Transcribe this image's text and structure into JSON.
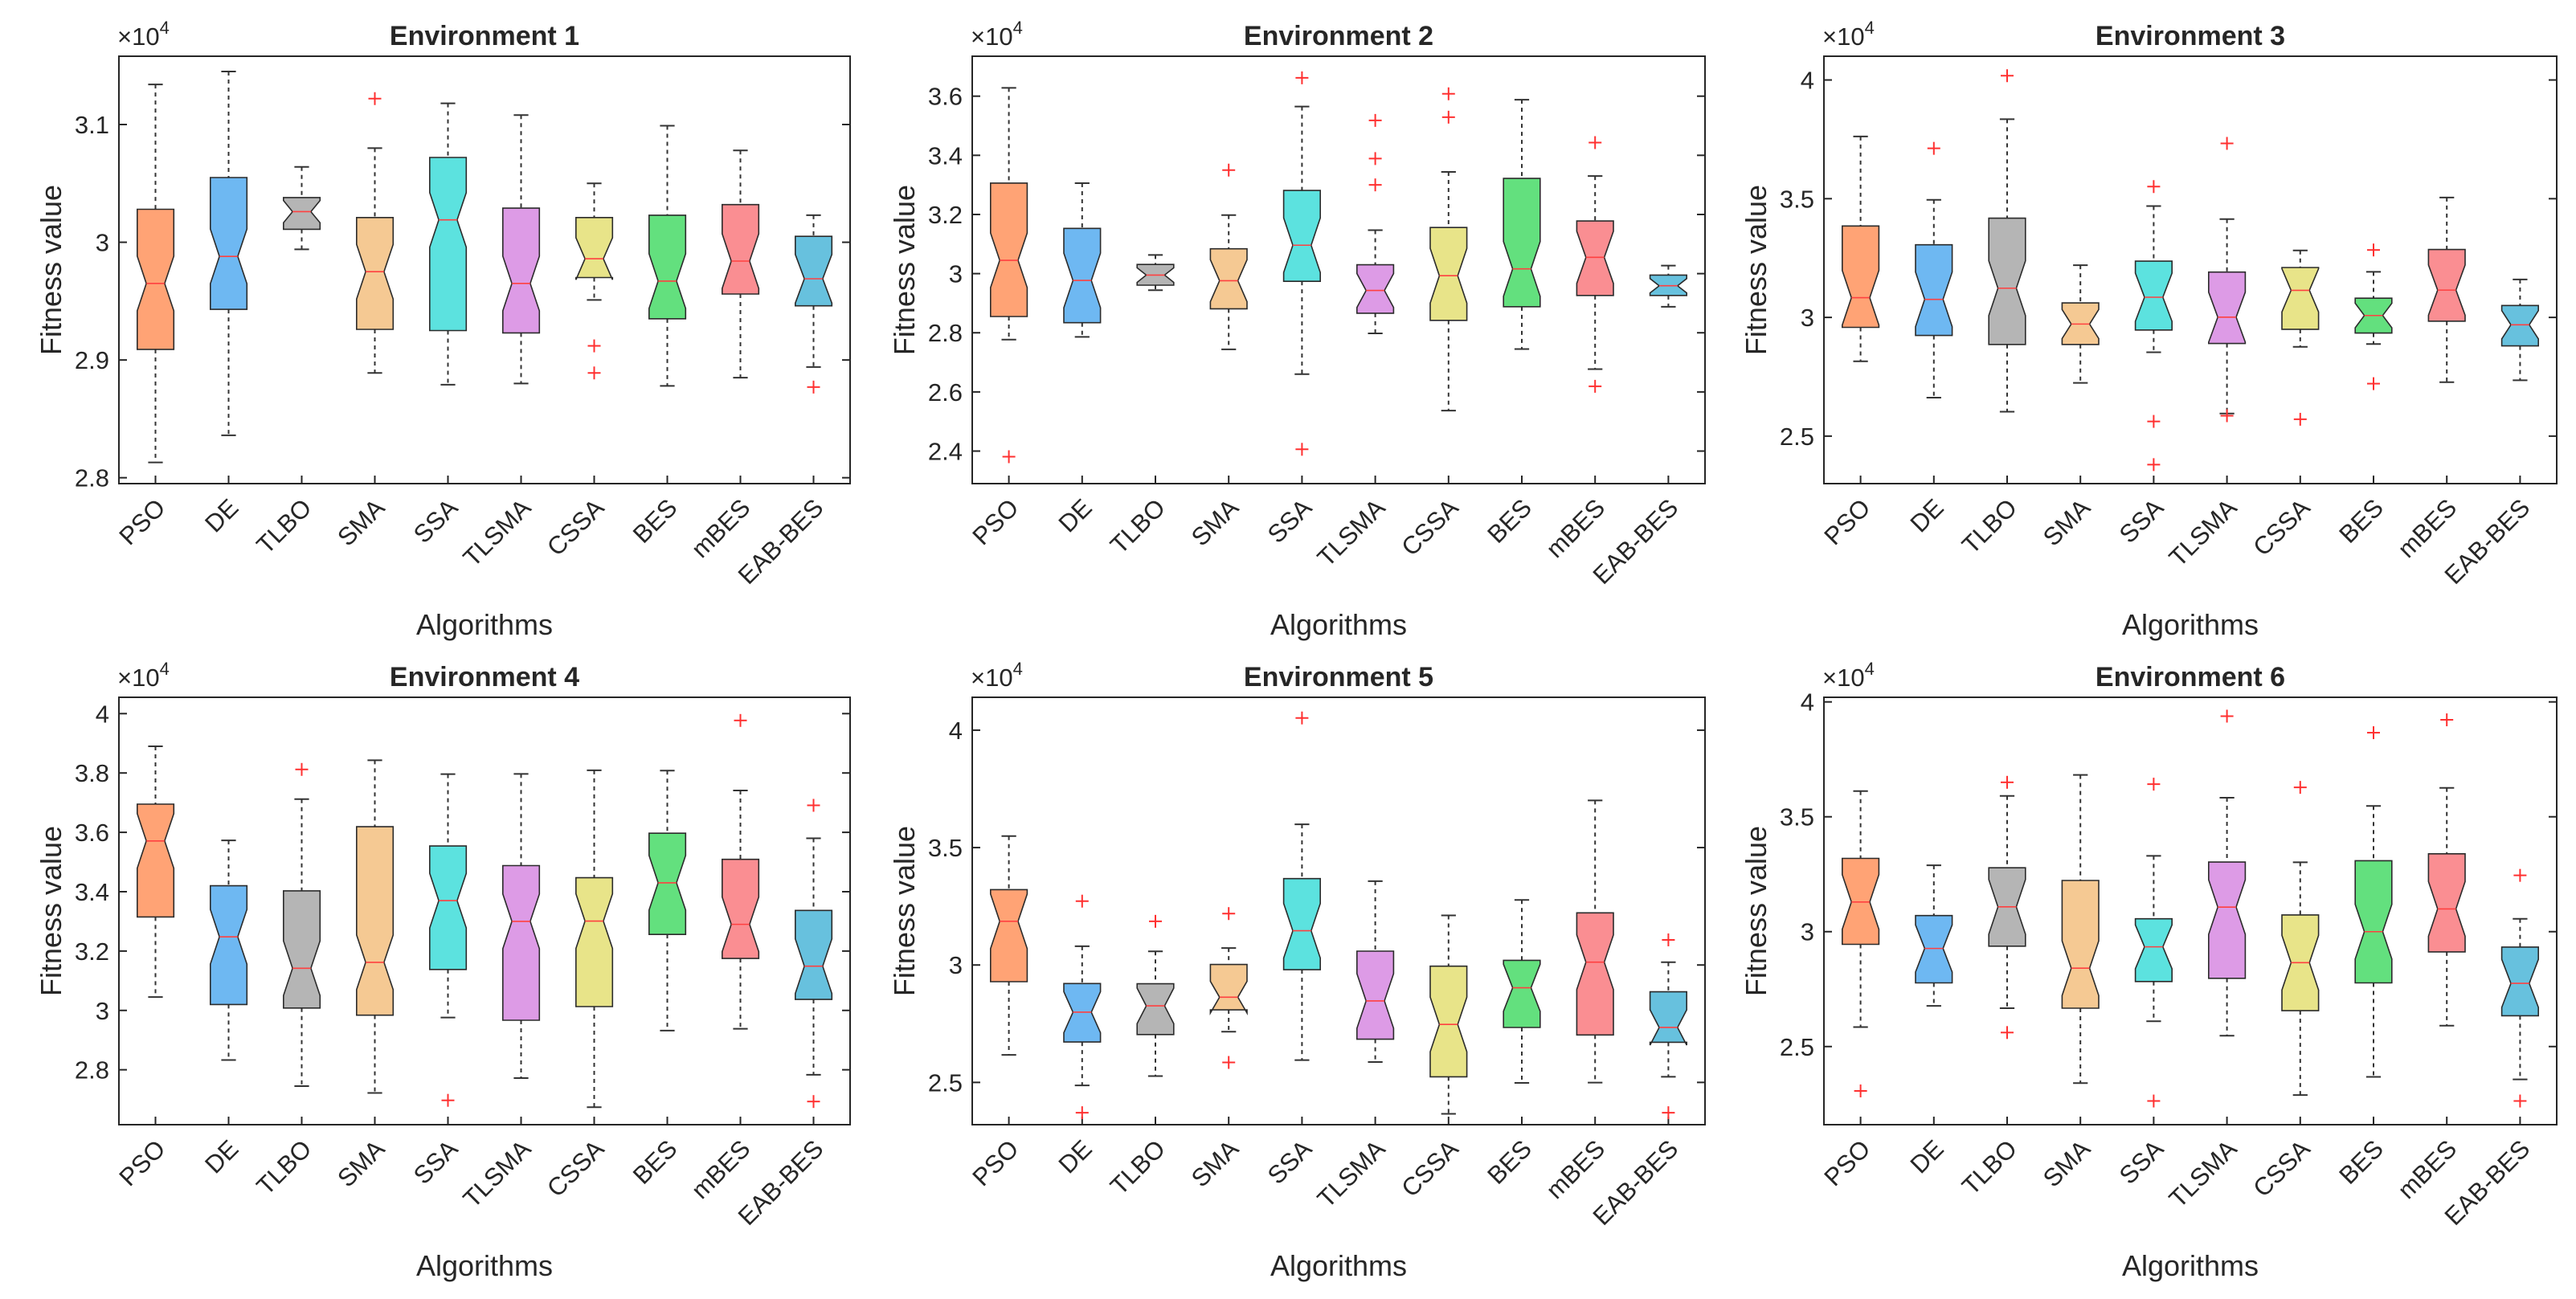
{
  "figure": {
    "algorithms": [
      "PSO",
      "DE",
      "TLBO",
      "SMA",
      "SSA",
      "TLSMA",
      "CSSA",
      "BES",
      "mBES",
      "EAB-BES"
    ],
    "colors": [
      "#FFA375",
      "#6EB8F2",
      "#B5B5B5",
      "#F5C993",
      "#5CE2DF",
      "#DD9BE6",
      "#E8E489",
      "#63E07E",
      "#FA8E92",
      "#67C1DE"
    ],
    "outlier_color": "#FF3030",
    "median_color": "#FF4040",
    "exponent_prefix": "×10",
    "exponent_power": "4"
  },
  "chart_data": [
    {
      "type": "box",
      "title": "Environment 1",
      "xlabel": "Algorithms",
      "ylabel": "Fitness value",
      "ylim": [
        2.795,
        3.158
      ],
      "yticks": [
        2.8,
        2.9,
        3.0,
        3.1
      ],
      "ytick_labels": [
        "2.8",
        "2.9",
        "3",
        "3.1"
      ],
      "scale": "×10^4",
      "boxes": [
        {
          "name": "PSO",
          "whisker_low": 2.813,
          "q1": 2.909,
          "median": 2.965,
          "q3": 3.028,
          "whisker_high": 3.134,
          "outliers": []
        },
        {
          "name": "DE",
          "whisker_low": 2.836,
          "q1": 2.943,
          "median": 2.988,
          "q3": 3.055,
          "whisker_high": 3.145,
          "outliers": []
        },
        {
          "name": "TLBO",
          "whisker_low": 2.994,
          "q1": 3.011,
          "median": 3.026,
          "q3": 3.038,
          "whisker_high": 3.064,
          "outliers": []
        },
        {
          "name": "SMA",
          "whisker_low": 2.889,
          "q1": 2.926,
          "median": 2.975,
          "q3": 3.021,
          "whisker_high": 3.08,
          "outliers": [
            3.122
          ]
        },
        {
          "name": "SSA",
          "whisker_low": 2.879,
          "q1": 2.925,
          "median": 3.019,
          "q3": 3.072,
          "whisker_high": 3.118,
          "outliers": []
        },
        {
          "name": "TLSMA",
          "whisker_low": 2.88,
          "q1": 2.923,
          "median": 2.965,
          "q3": 3.029,
          "whisker_high": 3.108,
          "outliers": []
        },
        {
          "name": "CSSA",
          "whisker_low": 2.951,
          "q1": 2.97,
          "median": 2.986,
          "q3": 3.021,
          "whisker_high": 3.05,
          "outliers": [
            2.912,
            2.889
          ]
        },
        {
          "name": "BES",
          "whisker_low": 2.878,
          "q1": 2.935,
          "median": 2.967,
          "q3": 3.023,
          "whisker_high": 3.099,
          "outliers": []
        },
        {
          "name": "mBES",
          "whisker_low": 2.885,
          "q1": 2.956,
          "median": 2.984,
          "q3": 3.032,
          "whisker_high": 3.078,
          "outliers": []
        },
        {
          "name": "EAB-BES",
          "whisker_low": 2.894,
          "q1": 2.946,
          "median": 2.969,
          "q3": 3.005,
          "whisker_high": 3.023,
          "outliers": [
            2.877
          ]
        }
      ]
    },
    {
      "type": "box",
      "title": "Environment 2",
      "xlabel": "Algorithms",
      "ylabel": "Fitness value",
      "ylim": [
        2.29,
        3.735
      ],
      "yticks": [
        2.4,
        2.6,
        2.8,
        3.0,
        3.2,
        3.4,
        3.6
      ],
      "ytick_labels": [
        "2.4",
        "2.6",
        "2.8",
        "3",
        "3.2",
        "3.4",
        "3.6"
      ],
      "scale": "×10^4",
      "boxes": [
        {
          "name": "PSO",
          "whisker_low": 2.777,
          "q1": 2.855,
          "median": 3.045,
          "q3": 3.306,
          "whisker_high": 3.628,
          "outliers": [
            2.381
          ]
        },
        {
          "name": "DE",
          "whisker_low": 2.786,
          "q1": 2.834,
          "median": 2.977,
          "q3": 3.153,
          "whisker_high": 3.306,
          "outliers": []
        },
        {
          "name": "TLBO",
          "whisker_low": 2.944,
          "q1": 2.961,
          "median": 2.995,
          "q3": 3.031,
          "whisker_high": 3.063,
          "outliers": []
        },
        {
          "name": "SMA",
          "whisker_low": 2.744,
          "q1": 2.881,
          "median": 2.976,
          "q3": 3.084,
          "whisker_high": 3.198,
          "outliers": [
            3.35
          ]
        },
        {
          "name": "SSA",
          "whisker_low": 2.66,
          "q1": 2.974,
          "median": 3.096,
          "q3": 3.281,
          "whisker_high": 3.565,
          "outliers": [
            3.662,
            2.406
          ]
        },
        {
          "name": "TLSMA",
          "whisker_low": 2.798,
          "q1": 2.866,
          "median": 2.943,
          "q3": 3.03,
          "whisker_high": 3.147,
          "outliers": [
            3.518,
            3.389,
            3.3
          ]
        },
        {
          "name": "CSSA",
          "whisker_low": 2.537,
          "q1": 2.842,
          "median": 2.993,
          "q3": 3.156,
          "whisker_high": 3.344,
          "outliers": [
            3.608,
            3.529
          ]
        },
        {
          "name": "BES",
          "whisker_low": 2.745,
          "q1": 2.888,
          "median": 3.016,
          "q3": 3.322,
          "whisker_high": 3.588,
          "outliers": []
        },
        {
          "name": "mBES",
          "whisker_low": 2.677,
          "q1": 2.926,
          "median": 3.055,
          "q3": 3.178,
          "whisker_high": 3.33,
          "outliers": [
            3.443,
            2.619
          ]
        },
        {
          "name": "EAB-BES",
          "whisker_low": 2.888,
          "q1": 2.926,
          "median": 2.959,
          "q3": 2.995,
          "whisker_high": 3.027,
          "outliers": []
        }
      ]
    },
    {
      "type": "box",
      "title": "Environment 3",
      "xlabel": "Algorithms",
      "ylabel": "Fitness value",
      "ylim": [
        2.3,
        4.1
      ],
      "yticks": [
        2.5,
        3.0,
        3.5,
        4.0
      ],
      "ytick_labels": [
        "2.5",
        "3",
        "3.5",
        "4"
      ],
      "scale": "×10^4",
      "boxes": [
        {
          "name": "PSO",
          "whisker_low": 2.815,
          "q1": 2.958,
          "median": 3.083,
          "q3": 3.385,
          "whisker_high": 3.762,
          "outliers": []
        },
        {
          "name": "DE",
          "whisker_low": 2.662,
          "q1": 2.924,
          "median": 3.076,
          "q3": 3.306,
          "whisker_high": 3.495,
          "outliers": [
            3.712
          ]
        },
        {
          "name": "TLBO",
          "whisker_low": 2.603,
          "q1": 2.886,
          "median": 3.123,
          "q3": 3.418,
          "whisker_high": 3.835,
          "outliers": [
            4.018
          ]
        },
        {
          "name": "SMA",
          "whisker_low": 2.724,
          "q1": 2.886,
          "median": 2.972,
          "q3": 3.061,
          "whisker_high": 3.22,
          "outliers": []
        },
        {
          "name": "SSA",
          "whisker_low": 2.853,
          "q1": 2.947,
          "median": 3.085,
          "q3": 3.237,
          "whisker_high": 3.469,
          "outliers": [
            3.551,
            2.562,
            2.38
          ]
        },
        {
          "name": "TLSMA",
          "whisker_low": 2.595,
          "q1": 2.89,
          "median": 3.001,
          "q3": 3.191,
          "whisker_high": 3.414,
          "outliers": [
            3.733,
            2.586
          ]
        },
        {
          "name": "CSSA",
          "whisker_low": 2.876,
          "q1": 2.95,
          "median": 3.114,
          "q3": 3.21,
          "whisker_high": 3.282,
          "outliers": [
            2.571
          ]
        },
        {
          "name": "BES",
          "whisker_low": 2.888,
          "q1": 2.934,
          "median": 3.008,
          "q3": 3.081,
          "whisker_high": 3.192,
          "outliers": [
            3.284,
            2.721
          ]
        },
        {
          "name": "mBES",
          "whisker_low": 2.727,
          "q1": 2.984,
          "median": 3.115,
          "q3": 3.286,
          "whisker_high": 3.505,
          "outliers": []
        },
        {
          "name": "EAB-BES",
          "whisker_low": 2.735,
          "q1": 2.88,
          "median": 2.969,
          "q3": 3.05,
          "whisker_high": 3.16,
          "outliers": []
        }
      ]
    },
    {
      "type": "box",
      "title": "Environment 4",
      "xlabel": "Algorithms",
      "ylabel": "Fitness value",
      "ylim": [
        2.615,
        4.055
      ],
      "yticks": [
        2.8,
        3.0,
        3.2,
        3.4,
        3.6,
        3.8,
        4.0
      ],
      "ytick_labels": [
        "2.8",
        "3",
        "3.2",
        "3.4",
        "3.6",
        "3.8",
        "4"
      ],
      "scale": "×10^4",
      "boxes": [
        {
          "name": "PSO",
          "whisker_low": 3.045,
          "q1": 3.315,
          "median": 3.571,
          "q3": 3.695,
          "whisker_high": 3.89,
          "outliers": []
        },
        {
          "name": "DE",
          "whisker_low": 2.833,
          "q1": 3.02,
          "median": 3.248,
          "q3": 3.42,
          "whisker_high": 3.573,
          "outliers": []
        },
        {
          "name": "TLBO",
          "whisker_low": 2.745,
          "q1": 3.008,
          "median": 3.142,
          "q3": 3.403,
          "whisker_high": 3.712,
          "outliers": [
            3.812
          ]
        },
        {
          "name": "SMA",
          "whisker_low": 2.722,
          "q1": 2.984,
          "median": 3.162,
          "q3": 3.619,
          "whisker_high": 3.843,
          "outliers": []
        },
        {
          "name": "SSA",
          "whisker_low": 2.976,
          "q1": 3.138,
          "median": 3.37,
          "q3": 3.554,
          "whisker_high": 3.796,
          "outliers": [
            2.697
          ]
        },
        {
          "name": "TLSMA",
          "whisker_low": 2.772,
          "q1": 2.967,
          "median": 3.3,
          "q3": 3.488,
          "whisker_high": 3.797,
          "outliers": []
        },
        {
          "name": "CSSA",
          "whisker_low": 2.674,
          "q1": 3.013,
          "median": 3.301,
          "q3": 3.447,
          "whisker_high": 3.809,
          "outliers": []
        },
        {
          "name": "BES",
          "whisker_low": 2.932,
          "q1": 3.256,
          "median": 3.43,
          "q3": 3.597,
          "whisker_high": 3.808,
          "outliers": []
        },
        {
          "name": "mBES",
          "whisker_low": 2.938,
          "q1": 3.175,
          "median": 3.29,
          "q3": 3.509,
          "whisker_high": 3.741,
          "outliers": [
            3.977
          ]
        },
        {
          "name": "EAB-BES",
          "whisker_low": 2.783,
          "q1": 3.037,
          "median": 3.149,
          "q3": 3.337,
          "whisker_high": 3.58,
          "outliers": [
            3.691,
            2.693
          ]
        }
      ]
    },
    {
      "type": "box",
      "title": "Environment 5",
      "xlabel": "Algorithms",
      "ylabel": "Fitness value",
      "ylim": [
        2.32,
        4.14
      ],
      "yticks": [
        2.5,
        3.0,
        3.5,
        4.0
      ],
      "ytick_labels": [
        "2.5",
        "3",
        "3.5",
        "4"
      ],
      "scale": "×10^4",
      "boxes": [
        {
          "name": "PSO",
          "whisker_low": 2.617,
          "q1": 2.929,
          "median": 3.186,
          "q3": 3.321,
          "whisker_high": 3.549,
          "outliers": []
        },
        {
          "name": "DE",
          "whisker_low": 2.487,
          "q1": 2.672,
          "median": 2.799,
          "q3": 2.921,
          "whisker_high": 3.08,
          "outliers": [
            3.272,
            2.371
          ]
        },
        {
          "name": "TLBO",
          "whisker_low": 2.527,
          "q1": 2.704,
          "median": 2.826,
          "q3": 2.92,
          "whisker_high": 3.058,
          "outliers": [
            3.186
          ]
        },
        {
          "name": "SMA",
          "whisker_low": 2.716,
          "q1": 2.809,
          "median": 2.863,
          "q3": 3.002,
          "whisker_high": 3.072,
          "outliers": [
            3.219,
            2.585
          ]
        },
        {
          "name": "SSA",
          "whisker_low": 2.595,
          "q1": 2.98,
          "median": 3.146,
          "q3": 3.368,
          "whisker_high": 3.599,
          "outliers": [
            4.052
          ]
        },
        {
          "name": "TLSMA",
          "whisker_low": 2.587,
          "q1": 2.684,
          "median": 2.847,
          "q3": 3.059,
          "whisker_high": 3.357,
          "outliers": []
        },
        {
          "name": "CSSA",
          "whisker_low": 2.366,
          "q1": 2.524,
          "median": 2.747,
          "q3": 2.995,
          "whisker_high": 3.211,
          "outliers": []
        },
        {
          "name": "BES",
          "whisker_low": 2.498,
          "q1": 2.734,
          "median": 2.903,
          "q3": 3.02,
          "whisker_high": 3.277,
          "outliers": []
        },
        {
          "name": "mBES",
          "whisker_low": 2.499,
          "q1": 2.702,
          "median": 3.012,
          "q3": 3.222,
          "whisker_high": 3.701,
          "outliers": []
        },
        {
          "name": "EAB-BES",
          "whisker_low": 2.524,
          "q1": 2.671,
          "median": 2.734,
          "q3": 2.886,
          "whisker_high": 3.012,
          "outliers": [
            3.107,
            2.371
          ]
        }
      ]
    },
    {
      "type": "box",
      "title": "Environment 6",
      "xlabel": "Algorithms",
      "ylabel": "Fitness value",
      "ylim": [
        2.16,
        4.02
      ],
      "yticks": [
        2.5,
        3.0,
        3.5,
        4.0
      ],
      "ytick_labels": [
        "2.5",
        "3",
        "3.5",
        "4"
      ],
      "scale": "×10^4",
      "boxes": [
        {
          "name": "PSO",
          "whisker_low": 2.585,
          "q1": 2.945,
          "median": 3.129,
          "q3": 3.319,
          "whisker_high": 3.612,
          "outliers": [
            2.307
          ]
        },
        {
          "name": "DE",
          "whisker_low": 2.677,
          "q1": 2.777,
          "median": 2.927,
          "q3": 3.07,
          "whisker_high": 3.289,
          "outliers": []
        },
        {
          "name": "TLBO",
          "whisker_low": 2.667,
          "q1": 2.937,
          "median": 3.108,
          "q3": 3.278,
          "whisker_high": 3.591,
          "outliers": [
            3.65,
            2.561
          ]
        },
        {
          "name": "SMA",
          "whisker_low": 2.341,
          "q1": 2.667,
          "median": 2.841,
          "q3": 3.223,
          "whisker_high": 3.682,
          "outliers": []
        },
        {
          "name": "SSA",
          "whisker_low": 2.61,
          "q1": 2.783,
          "median": 2.934,
          "q3": 3.056,
          "whisker_high": 3.33,
          "outliers": [
            3.642,
            2.263
          ]
        },
        {
          "name": "TLSMA",
          "whisker_low": 2.547,
          "q1": 2.797,
          "median": 3.107,
          "q3": 3.303,
          "whisker_high": 3.583,
          "outliers": [
            3.938
          ]
        },
        {
          "name": "CSSA",
          "whisker_low": 2.289,
          "q1": 2.656,
          "median": 2.865,
          "q3": 3.073,
          "whisker_high": 3.302,
          "outliers": [
            3.628
          ]
        },
        {
          "name": "BES",
          "whisker_low": 2.368,
          "q1": 2.777,
          "median": 3.0,
          "q3": 3.309,
          "whisker_high": 3.547,
          "outliers": [
            3.866
          ]
        },
        {
          "name": "mBES",
          "whisker_low": 2.591,
          "q1": 2.912,
          "median": 3.099,
          "q3": 3.339,
          "whisker_high": 3.626,
          "outliers": [
            3.922
          ]
        },
        {
          "name": "EAB-BES",
          "whisker_low": 2.357,
          "q1": 2.634,
          "median": 2.775,
          "q3": 2.933,
          "whisker_high": 3.056,
          "outliers": [
            3.245,
            2.263
          ]
        }
      ]
    }
  ]
}
